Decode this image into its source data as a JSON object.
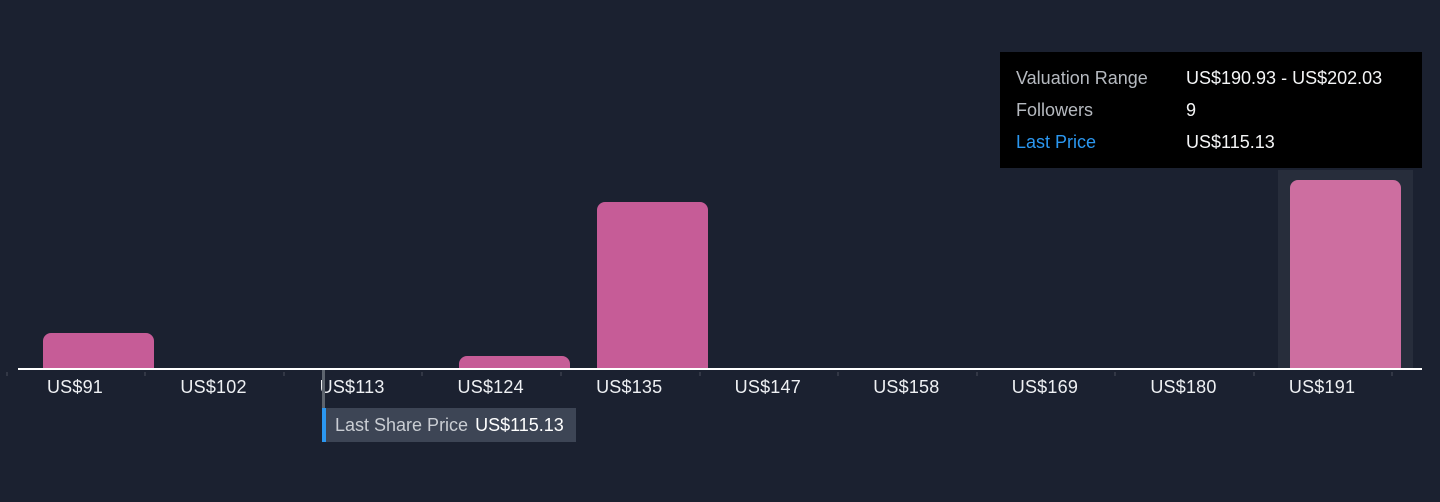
{
  "chart_data": {
    "type": "bar",
    "subtype": "histogram",
    "title": "",
    "xlabel": "",
    "ylabel": "",
    "categories": [
      "US$91",
      "US$102",
      "US$113",
      "US$124",
      "US$135",
      "US$147",
      "US$158",
      "US$169",
      "US$180",
      "US$191"
    ],
    "values": [
      35,
      0,
      0,
      12,
      166,
      0,
      0,
      0,
      0,
      188
    ],
    "values_note": "bar heights in px; chart has no visible y-axis scale",
    "highlighted_index": 9,
    "grid": false,
    "legend_position": "none",
    "colors": {
      "background": "#1b2130",
      "bar": "#c65c97",
      "bar_highlighted": "#cd6ea0",
      "hover_column": "rgba(255,255,255,0.055)",
      "axis_line": "#ffffff",
      "tick_label": "#eef0f3"
    }
  },
  "tooltip": {
    "background": "#000000",
    "value_color": "#f4f5f6",
    "rows": [
      {
        "label": "Valuation Range",
        "value": "US$190.93 - US$202.03",
        "label_color": "#b6bac0"
      },
      {
        "label": "Followers",
        "value": "9",
        "label_color": "#b6bac0"
      },
      {
        "label": "Last Price",
        "value": "US$115.13",
        "label_color": "#2b97f0"
      }
    ]
  },
  "marker": {
    "label": "Last Share Price",
    "value": "US$115.13",
    "accent_color": "#2b97f0",
    "line_color": "#5d646e"
  }
}
